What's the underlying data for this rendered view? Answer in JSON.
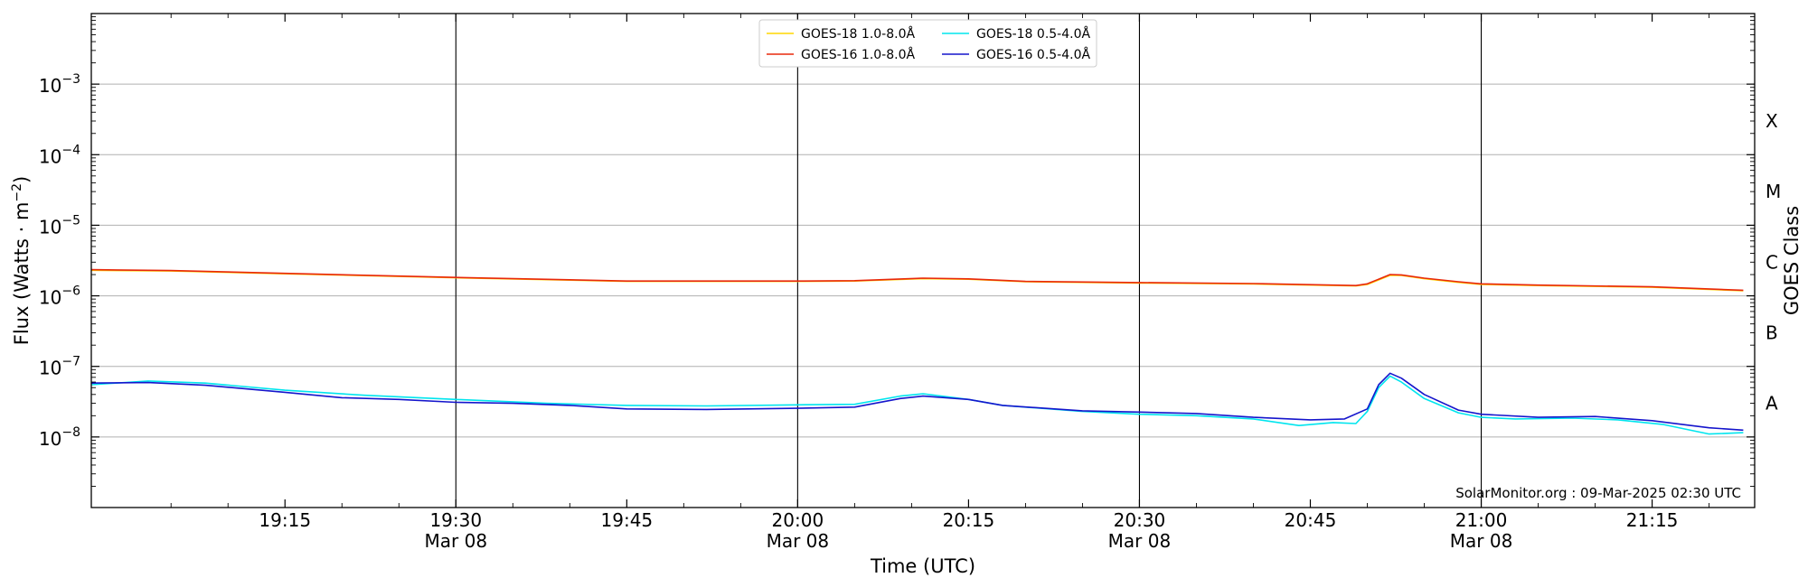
{
  "chart_data": {
    "type": "line",
    "title": "",
    "xlabel": "Time (UTC)",
    "ylabel": "Flux (Watts · m",
    "ylabel_sup": "−2",
    "ylabel_close": ")",
    "right_label": "GOES Class",
    "y_scale": "log",
    "ylim": [
      1e-09,
      0.01
    ],
    "xlim": [
      "18:58",
      "21:24"
    ],
    "y_ticks": [
      {
        "value": 0.001,
        "mantissa": "10",
        "exp": "−3"
      },
      {
        "value": 0.0001,
        "mantissa": "10",
        "exp": "−4"
      },
      {
        "value": 1e-05,
        "mantissa": "10",
        "exp": "−5"
      },
      {
        "value": 1e-06,
        "mantissa": "10",
        "exp": "−6"
      },
      {
        "value": 1e-07,
        "mantissa": "10",
        "exp": "−7"
      },
      {
        "value": 1e-08,
        "mantissa": "10",
        "exp": "−8"
      }
    ],
    "x_ticks": [
      {
        "time": "19:15",
        "date": ""
      },
      {
        "time": "19:30",
        "date": "Mar 08"
      },
      {
        "time": "19:45",
        "date": ""
      },
      {
        "time": "20:00",
        "date": "Mar 08"
      },
      {
        "time": "20:15",
        "date": ""
      },
      {
        "time": "20:30",
        "date": "Mar 08"
      },
      {
        "time": "20:45",
        "date": ""
      },
      {
        "time": "21:00",
        "date": "Mar 08"
      },
      {
        "time": "21:15",
        "date": ""
      }
    ],
    "vertical_lines": [
      "19:30",
      "20:00",
      "20:30",
      "21:00"
    ],
    "goes_classes": [
      {
        "label": "A",
        "flux": 3e-08
      },
      {
        "label": "B",
        "flux": 3e-07
      },
      {
        "label": "C",
        "flux": 3e-06
      },
      {
        "label": "M",
        "flux": 3e-05
      },
      {
        "label": "X",
        "flux": 0.0003
      }
    ],
    "grid": true,
    "legend_position": "top-center",
    "series": [
      {
        "name": "GOES-18 1.0-8.0Å",
        "color": "#ffd700",
        "points": [
          [
            "18:58",
            2.3e-06
          ],
          [
            "19:05",
            2.25e-06
          ],
          [
            "19:15",
            2.05e-06
          ],
          [
            "19:30",
            1.8e-06
          ],
          [
            "19:45",
            1.6e-06
          ],
          [
            "20:00",
            1.6e-06
          ],
          [
            "20:05",
            1.62e-06
          ],
          [
            "20:11",
            1.75e-06
          ],
          [
            "20:15",
            1.72e-06
          ],
          [
            "20:20",
            1.58e-06
          ],
          [
            "20:30",
            1.52e-06
          ],
          [
            "20:40",
            1.47e-06
          ],
          [
            "20:49",
            1.38e-06
          ],
          [
            "20:50",
            1.45e-06
          ],
          [
            "20:52",
            1.95e-06
          ],
          [
            "20:53",
            1.95e-06
          ],
          [
            "20:55",
            1.75e-06
          ],
          [
            "20:58",
            1.55e-06
          ],
          [
            "21:00",
            1.45e-06
          ],
          [
            "21:05",
            1.4e-06
          ],
          [
            "21:15",
            1.32e-06
          ],
          [
            "21:23",
            1.18e-06
          ]
        ]
      },
      {
        "name": "GOES-16 1.0-8.0Å",
        "color": "#e8280c",
        "points": [
          [
            "18:58",
            2.35e-06
          ],
          [
            "19:05",
            2.28e-06
          ],
          [
            "19:15",
            2.08e-06
          ],
          [
            "19:30",
            1.82e-06
          ],
          [
            "19:45",
            1.62e-06
          ],
          [
            "20:00",
            1.62e-06
          ],
          [
            "20:05",
            1.64e-06
          ],
          [
            "20:11",
            1.78e-06
          ],
          [
            "20:15",
            1.74e-06
          ],
          [
            "20:20",
            1.6e-06
          ],
          [
            "20:30",
            1.54e-06
          ],
          [
            "20:40",
            1.49e-06
          ],
          [
            "20:49",
            1.4e-06
          ],
          [
            "20:50",
            1.48e-06
          ],
          [
            "20:52",
            2e-06
          ],
          [
            "20:53",
            1.98e-06
          ],
          [
            "20:55",
            1.78e-06
          ],
          [
            "20:58",
            1.58e-06
          ],
          [
            "21:00",
            1.48e-06
          ],
          [
            "21:05",
            1.42e-06
          ],
          [
            "21:15",
            1.34e-06
          ],
          [
            "21:23",
            1.2e-06
          ]
        ]
      },
      {
        "name": "GOES-18 0.5-4.0Å",
        "color": "#00e5ee",
        "points": [
          [
            "18:58",
            5.5e-08
          ],
          [
            "19:03",
            6.2e-08
          ],
          [
            "19:08",
            5.8e-08
          ],
          [
            "19:15",
            4.6e-08
          ],
          [
            "19:22",
            3.9e-08
          ],
          [
            "19:30",
            3.4e-08
          ],
          [
            "19:38",
            3e-08
          ],
          [
            "19:45",
            2.8e-08
          ],
          [
            "19:52",
            2.75e-08
          ],
          [
            "20:00",
            2.85e-08
          ],
          [
            "20:05",
            2.9e-08
          ],
          [
            "20:09",
            3.8e-08
          ],
          [
            "20:11",
            4.1e-08
          ],
          [
            "20:15",
            3.4e-08
          ],
          [
            "20:18",
            2.8e-08
          ],
          [
            "20:25",
            2.3e-08
          ],
          [
            "20:30",
            2.1e-08
          ],
          [
            "20:35",
            2e-08
          ],
          [
            "20:40",
            1.8e-08
          ],
          [
            "20:44",
            1.45e-08
          ],
          [
            "20:47",
            1.6e-08
          ],
          [
            "20:49",
            1.55e-08
          ],
          [
            "20:50",
            2.3e-08
          ],
          [
            "20:51",
            5e-08
          ],
          [
            "20:52",
            7.3e-08
          ],
          [
            "20:53",
            6e-08
          ],
          [
            "20:55",
            3.5e-08
          ],
          [
            "20:58",
            2.2e-08
          ],
          [
            "21:00",
            1.9e-08
          ],
          [
            "21:03",
            1.8e-08
          ],
          [
            "21:08",
            1.85e-08
          ],
          [
            "21:12",
            1.75e-08
          ],
          [
            "21:16",
            1.5e-08
          ],
          [
            "21:20",
            1.1e-08
          ],
          [
            "21:23",
            1.15e-08
          ]
        ]
      },
      {
        "name": "GOES-16 0.5-4.0Å",
        "color": "#1515cc",
        "points": [
          [
            "18:58",
            5.8e-08
          ],
          [
            "19:03",
            5.9e-08
          ],
          [
            "19:08",
            5.4e-08
          ],
          [
            "19:15",
            4.3e-08
          ],
          [
            "19:20",
            3.6e-08
          ],
          [
            "19:25",
            3.4e-08
          ],
          [
            "19:30",
            3.1e-08
          ],
          [
            "19:35",
            3e-08
          ],
          [
            "19:40",
            2.8e-08
          ],
          [
            "19:45",
            2.5e-08
          ],
          [
            "19:52",
            2.45e-08
          ],
          [
            "20:00",
            2.55e-08
          ],
          [
            "20:05",
            2.65e-08
          ],
          [
            "20:09",
            3.5e-08
          ],
          [
            "20:11",
            3.8e-08
          ],
          [
            "20:15",
            3.4e-08
          ],
          [
            "20:18",
            2.8e-08
          ],
          [
            "20:25",
            2.35e-08
          ],
          [
            "20:30",
            2.25e-08
          ],
          [
            "20:35",
            2.15e-08
          ],
          [
            "20:40",
            1.9e-08
          ],
          [
            "20:45",
            1.75e-08
          ],
          [
            "20:48",
            1.8e-08
          ],
          [
            "20:50",
            2.5e-08
          ],
          [
            "20:51",
            5.5e-08
          ],
          [
            "20:52",
            8e-08
          ],
          [
            "20:53",
            6.8e-08
          ],
          [
            "20:55",
            4e-08
          ],
          [
            "20:58",
            2.4e-08
          ],
          [
            "21:00",
            2.1e-08
          ],
          [
            "21:05",
            1.9e-08
          ],
          [
            "21:10",
            1.95e-08
          ],
          [
            "21:15",
            1.7e-08
          ],
          [
            "21:20",
            1.35e-08
          ],
          [
            "21:23",
            1.25e-08
          ]
        ]
      }
    ],
    "credit": "SolarMonitor.org : 09-Mar-2025 02:30 UTC"
  }
}
